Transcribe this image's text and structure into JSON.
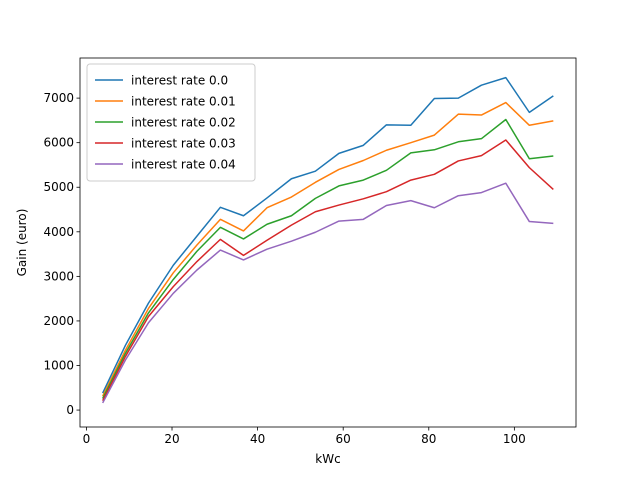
{
  "chart_data": {
    "type": "line",
    "title": "",
    "xlabel": "kWc",
    "ylabel": "Gain (euro)",
    "xlim": [
      -1.5,
      114.4
    ],
    "ylim": [
      -380,
      7900
    ],
    "xticks": [
      0,
      20,
      40,
      60,
      80,
      100
    ],
    "yticks": [
      0,
      1000,
      2000,
      3000,
      4000,
      5000,
      6000,
      7000
    ],
    "grid": false,
    "legend_position": "top-left",
    "x": [
      3.8,
      9.1,
      14.5,
      20.3,
      25.8,
      31.3,
      36.7,
      42.2,
      47.9,
      53.5,
      59.0,
      64.7,
      70.1,
      75.8,
      81.3,
      86.9,
      92.3,
      98.0,
      103.5,
      109.1
    ],
    "series": [
      {
        "name": "interest rate 0.0",
        "color": "#1f77b4",
        "values": [
          380,
          1450,
          2400,
          3250,
          3900,
          4550,
          4360,
          4760,
          5190,
          5360,
          5760,
          5940,
          6400,
          6390,
          6990,
          7000,
          7290,
          7460,
          6680,
          7050
        ]
      },
      {
        "name": "interest rate 0.01",
        "color": "#ff7f0e",
        "values": [
          310,
          1340,
          2280,
          3080,
          3700,
          4280,
          4020,
          4540,
          4780,
          5110,
          5400,
          5600,
          5830,
          6000,
          6170,
          6640,
          6620,
          6900,
          6390,
          6490
        ]
      },
      {
        "name": "interest rate 0.02",
        "color": "#2ca02c",
        "values": [
          260,
          1270,
          2180,
          2930,
          3560,
          4100,
          3840,
          4170,
          4360,
          4750,
          5030,
          5160,
          5380,
          5770,
          5840,
          6020,
          6090,
          6520,
          5640,
          5700
        ]
      },
      {
        "name": "interest rate 0.03",
        "color": "#d62728",
        "values": [
          210,
          1200,
          2100,
          2770,
          3330,
          3830,
          3470,
          3810,
          4150,
          4450,
          4600,
          4740,
          4900,
          5160,
          5290,
          5590,
          5710,
          6060,
          5440,
          4950
        ]
      },
      {
        "name": "interest rate 0.04",
        "color": "#9467bd",
        "values": [
          160,
          1120,
          1960,
          2620,
          3140,
          3590,
          3370,
          3610,
          3790,
          3990,
          4240,
          4280,
          4590,
          4700,
          4540,
          4810,
          4880,
          5090,
          4230,
          4190
        ]
      }
    ]
  }
}
